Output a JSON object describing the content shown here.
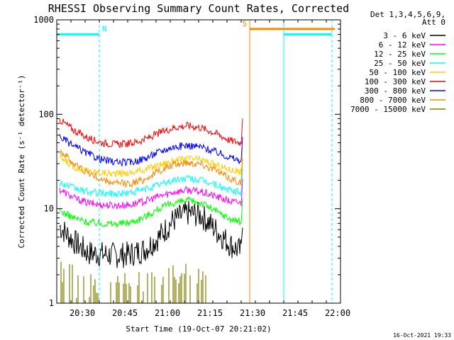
{
  "chart_data": {
    "type": "line",
    "title": "RHESSI Observing Summary Count Rates, Corrected",
    "xlabel": "Start Time (19-Oct-07 20:21:02)",
    "ylabel": "Corrected Count Rate (s⁻¹ detector⁻¹)",
    "xlim": [
      "20:21",
      "22:01"
    ],
    "ylim": [
      1,
      1000
    ],
    "yscale": "log",
    "x_ticks": [
      "20:30",
      "20:45",
      "21:00",
      "21:15",
      "21:30",
      "21:45",
      "22:00"
    ],
    "y_ticks": [
      "1",
      "10",
      "100",
      "1000"
    ],
    "legend_header": [
      "Det 1,3,4,5,6,9,",
      "Att 0"
    ],
    "legend_position": "outside-right",
    "series": [
      {
        "name": "3 - 6 keV",
        "color": "#000000",
        "x": [
          "20:22",
          "20:27",
          "20:32",
          "20:37",
          "20:42",
          "20:47",
          "20:52",
          "20:57",
          "21:02",
          "21:07",
          "21:12",
          "21:17",
          "21:22",
          "21:26"
        ],
        "y": [
          6.5,
          4.5,
          3.4,
          3.3,
          3.2,
          3.3,
          3.7,
          5.0,
          7.5,
          9.0,
          8.5,
          6.0,
          4.2,
          3.5
        ]
      },
      {
        "name": "6 - 12 keV",
        "color": "#ff00ff",
        "x": [
          "20:22",
          "20:27",
          "20:32",
          "20:37",
          "20:42",
          "20:47",
          "20:52",
          "20:57",
          "21:02",
          "21:07",
          "21:12",
          "21:17",
          "21:22",
          "21:26"
        ],
        "y": [
          16,
          13,
          11.5,
          11,
          10.8,
          11,
          12,
          13.5,
          15,
          15.8,
          15,
          13.5,
          12,
          11.5
        ]
      },
      {
        "name": "12 - 25 keV",
        "color": "#00ff00",
        "x": [
          "20:22",
          "20:27",
          "20:32",
          "20:37",
          "20:42",
          "20:47",
          "20:52",
          "20:57",
          "21:02",
          "21:07",
          "21:12",
          "21:17",
          "21:22",
          "21:26"
        ],
        "y": [
          9.5,
          8,
          7.2,
          7,
          6.9,
          7.2,
          8.2,
          10,
          11.5,
          12.2,
          11.5,
          9.5,
          7.8,
          7.2
        ]
      },
      {
        "name": "25 - 50 keV",
        "color": "#00ffff",
        "x": [
          "20:22",
          "20:27",
          "20:32",
          "20:37",
          "20:42",
          "20:47",
          "20:52",
          "20:57",
          "21:02",
          "21:07",
          "21:12",
          "21:17",
          "21:22",
          "21:26"
        ],
        "y": [
          19,
          16.5,
          15,
          14.6,
          14.4,
          14.8,
          16,
          18,
          20,
          21,
          20,
          18,
          15.5,
          14.8
        ]
      },
      {
        "name": "50 - 100 keV",
        "color": "#ffcc00",
        "x": [
          "20:22",
          "20:27",
          "20:32",
          "20:37",
          "20:42",
          "20:47",
          "20:52",
          "20:57",
          "21:02",
          "21:07",
          "21:12",
          "21:17",
          "21:22",
          "21:26"
        ],
        "y": [
          35,
          28,
          25,
          24,
          23.5,
          24,
          26,
          29,
          32,
          34,
          33,
          29,
          26,
          24.5
        ]
      },
      {
        "name": "100 - 300 keV",
        "color": "#ff0000",
        "x": [
          "20:22",
          "20:27",
          "20:32",
          "20:37",
          "20:42",
          "20:47",
          "20:52",
          "20:57",
          "21:02",
          "21:07",
          "21:12",
          "21:17",
          "21:22",
          "21:26"
        ],
        "y": [
          88,
          68,
          56,
          50,
          48,
          49,
          54,
          63,
          72,
          76,
          72,
          63,
          53,
          50
        ]
      },
      {
        "name": "300 - 800 keV",
        "color": "#0000ff",
        "x": [
          "20:22",
          "20:27",
          "20:32",
          "20:37",
          "20:42",
          "20:47",
          "20:52",
          "20:57",
          "21:02",
          "21:07",
          "21:12",
          "21:17",
          "21:22",
          "21:26"
        ],
        "y": [
          58,
          46,
          38,
          33,
          31,
          31,
          34,
          40,
          45,
          47,
          45,
          40,
          35,
          32
        ]
      },
      {
        "name": "800 - 7000 keV",
        "color": "#ff8800",
        "x": [
          "20:22",
          "20:27",
          "20:32",
          "20:37",
          "20:42",
          "20:47",
          "20:52",
          "20:57",
          "21:02",
          "21:07",
          "21:12",
          "21:17",
          "21:22",
          "21:26"
        ],
        "y": [
          42,
          30,
          24,
          20,
          18.5,
          18.5,
          20.5,
          25,
          29,
          31,
          30,
          25.5,
          21,
          19
        ]
      },
      {
        "name": "7000 - 15000 keV",
        "color": "#808000",
        "x": [
          "20:22",
          "20:24",
          "20:27",
          "21:00",
          "21:03",
          "21:10",
          "21:14"
        ],
        "y": [
          2.5,
          2.2,
          1.8,
          2.2,
          2.5,
          2.6,
          2.3
        ]
      }
    ],
    "annotations": [
      {
        "label": "N",
        "color": "#00ffff",
        "x_start": "20:21",
        "x_end": "20:36",
        "level": 700
      },
      {
        "label": "S",
        "color": "#ff8800",
        "x_start": "21:29",
        "x_end": "21:59",
        "level": 800
      },
      {
        "label": "",
        "color": "#00ffff",
        "x_start": "21:41",
        "x_end": "21:58",
        "level": 700
      }
    ],
    "vertical_lines": [
      {
        "x": "20:21",
        "color": "#00ffff",
        "style": "solid"
      },
      {
        "x": "20:36",
        "color": "#00ffff",
        "style": "dashed"
      },
      {
        "x": "21:29",
        "color": "#ff8800",
        "style": "solid"
      },
      {
        "x": "21:41",
        "color": "#00ffff",
        "style": "solid"
      },
      {
        "x": "21:58",
        "color": "#ff8800",
        "style": "dashed"
      },
      {
        "x": "21:58",
        "color": "#00ffff",
        "style": "dashed"
      }
    ]
  },
  "footer": {
    "timestamp": "16-Oct-2021 19:33"
  }
}
